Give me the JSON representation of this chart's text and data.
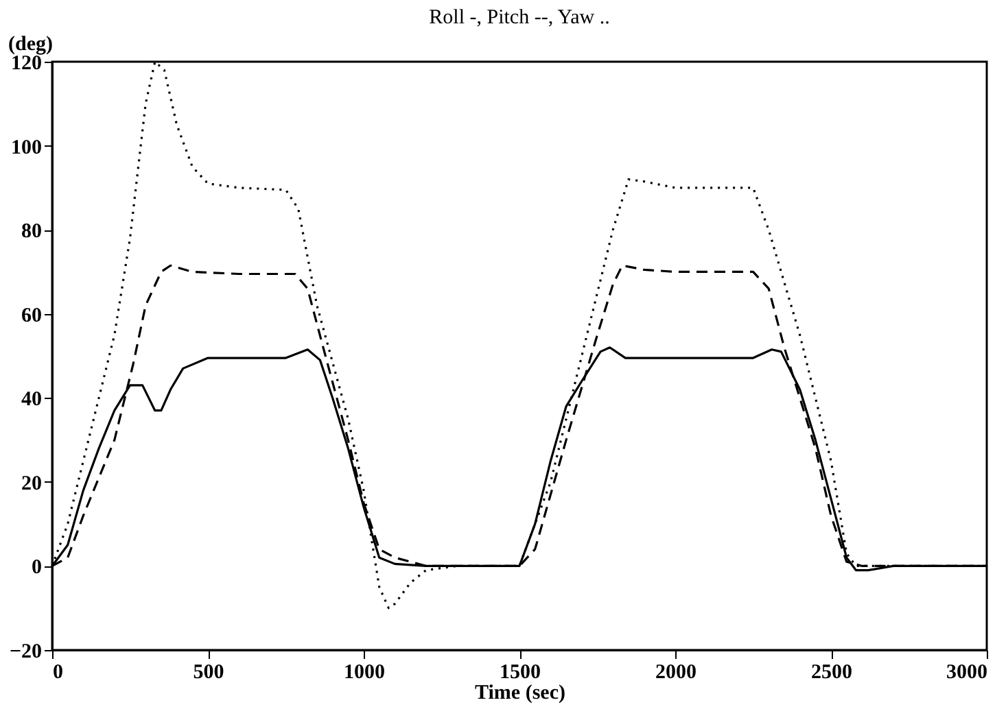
{
  "chart_data": {
    "type": "line",
    "title": "Roll -, Pitch --, Yaw ..",
    "xlabel": "Time (sec)",
    "ylabel": "(deg)",
    "xlim": [
      0,
      3000
    ],
    "xticks": [
      0,
      500,
      1000,
      1500,
      2000,
      2500,
      3000
    ],
    "ylim": [
      -20,
      120
    ],
    "yticks": [
      -20,
      0,
      20,
      40,
      60,
      80,
      100,
      120
    ],
    "grid": false,
    "legend": false,
    "series": [
      {
        "color": "#000000",
        "line_style": "solid",
        "x": [
          0,
          50,
          100,
          150,
          200,
          250,
          290,
          330,
          350,
          380,
          420,
          500,
          750,
          820,
          860,
          900,
          950,
          1000,
          1050,
          1100,
          1200,
          1500,
          1550,
          1600,
          1650,
          1700,
          1760,
          1790,
          1840,
          1900,
          2250,
          2310,
          2340,
          2400,
          2450,
          2500,
          2550,
          2580,
          2620,
          2700,
          3000
        ],
        "values": [
          0,
          5,
          18,
          28,
          37,
          43,
          43,
          37,
          37,
          42,
          47,
          49.5,
          49.5,
          51.5,
          49,
          40,
          28,
          14,
          2,
          0.5,
          0,
          0,
          10,
          25,
          38,
          44,
          51,
          52,
          49.5,
          49.5,
          49.5,
          51.5,
          51,
          42,
          30,
          16,
          2,
          -1,
          -1,
          0,
          0
        ]
      },
      {
        "color": "#000000",
        "line_style": "dashed",
        "x": [
          0,
          50,
          100,
          200,
          260,
          300,
          350,
          380,
          450,
          600,
          780,
          820,
          870,
          950,
          1000,
          1050,
          1100,
          1200,
          1500,
          1550,
          1650,
          1750,
          1800,
          1830,
          1900,
          2000,
          2250,
          2300,
          2350,
          2450,
          2500,
          2550,
          2600,
          3000
        ],
        "values": [
          0,
          2,
          12,
          30,
          48,
          62,
          70,
          71.5,
          70,
          69.5,
          69.5,
          66,
          52,
          30,
          15,
          4,
          2,
          0,
          0,
          4,
          30,
          55,
          67,
          71.5,
          70.5,
          70,
          70,
          66,
          52,
          28,
          12,
          1,
          0,
          0
        ]
      },
      {
        "color": "#000000",
        "line_style": "dotted",
        "x": [
          0,
          50,
          100,
          200,
          250,
          300,
          330,
          360,
          400,
          450,
          500,
          600,
          750,
          790,
          850,
          950,
          1000,
          1050,
          1080,
          1100,
          1150,
          1200,
          1300,
          1500,
          1600,
          1700,
          1800,
          1850,
          1900,
          2000,
          2250,
          2300,
          2400,
          2500,
          2550,
          2580,
          3000
        ],
        "values": [
          0,
          10,
          25,
          55,
          78,
          110,
          120,
          118,
          105,
          95,
          91,
          90,
          89.5,
          85,
          62,
          35,
          18,
          -5,
          -10,
          -9,
          -4,
          -1,
          0,
          0,
          20,
          50,
          80,
          92,
          91.5,
          90,
          90,
          80,
          55,
          25,
          3,
          0,
          0
        ]
      }
    ]
  }
}
